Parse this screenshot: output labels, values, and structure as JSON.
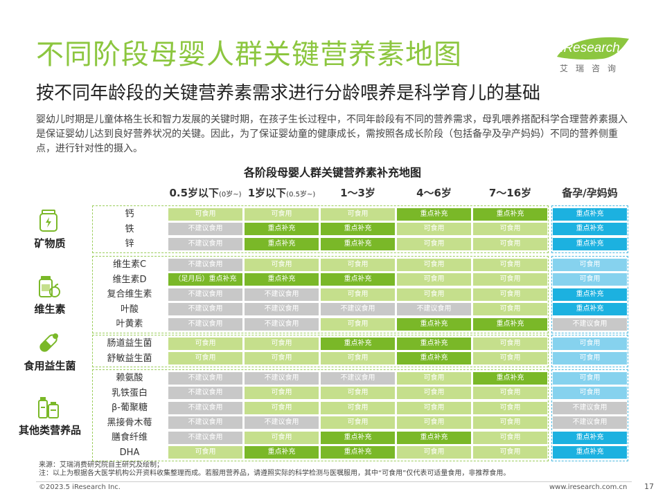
{
  "title": "不同阶段母婴人群关键营养素地图",
  "subtitle": "按不同年龄段的关键营养素需求进行分龄喂养是科学育儿的基础",
  "intro": "婴幼儿时期是儿童体格生长和智力发展的关键时期，在孩子生长过程中，不同年龄段有不同的营养需求，母乳喂养搭配科学合理营养素摄入是保证婴幼儿达到良好营养状况的关键。因此，为了保证婴幼童的健康成长，需按照各成长阶段（包括备孕及孕产妈妈）不同的营养侧重点，进行针对性的摄入。",
  "logo": {
    "brand": "iResearch",
    "cn": "艾瑞咨询",
    "color": "#8cc63f"
  },
  "table_title": "各阶段母婴人群关键营养素补充地图",
  "columns": [
    {
      "main": "0.5岁以下",
      "note": "(0岁~)"
    },
    {
      "main": "1岁以下",
      "note": "(0.5岁~)"
    },
    {
      "main": "1～3岁",
      "note": ""
    },
    {
      "main": "4～6岁",
      "note": ""
    },
    {
      "main": "7～16岁",
      "note": ""
    },
    {
      "main": "备孕/孕妈妈",
      "note": ""
    }
  ],
  "groups": [
    {
      "name": "矿物质",
      "icon": "jar-icon",
      "rows": [
        {
          "name": "钙",
          "cells": [
            "可食用",
            "可食用",
            "可食用",
            "重点补充",
            "重点补充",
            "重点补充"
          ]
        },
        {
          "name": "铁",
          "cells": [
            "不建议食用",
            "重点补充",
            "重点补充",
            "可食用",
            "可食用",
            "重点补充"
          ]
        },
        {
          "name": "锌",
          "cells": [
            "不建议食用",
            "重点补充",
            "重点补充",
            "可食用",
            "可食用",
            "重点补充"
          ]
        }
      ]
    },
    {
      "name": "维生素",
      "icon": "vitamin-bottle-icon",
      "rows": [
        {
          "name": "维生素C",
          "cells": [
            "不建议食用",
            "可食用",
            "可食用",
            "可食用",
            "可食用",
            "可食用"
          ]
        },
        {
          "name": "维生素D",
          "cells": [
            "（足月后）重点补充",
            "重点补充",
            "重点补充",
            "可食用",
            "可食用",
            "可食用"
          ]
        },
        {
          "name": "复合维生素",
          "cells": [
            "不建议食用",
            "不建议食用",
            "可食用",
            "可食用",
            "可食用",
            "重点补充"
          ]
        },
        {
          "name": "叶酸",
          "cells": [
            "不建议食用",
            "不建议食用",
            "不建议食用",
            "不建议食用",
            "可食用",
            "重点补充"
          ]
        },
        {
          "name": "叶黄素",
          "cells": [
            "不建议食用",
            "不建议食用",
            "可食用",
            "重点补充",
            "重点补充",
            "不建议食用"
          ]
        }
      ]
    },
    {
      "name": "食用益生菌",
      "icon": "capsule-icon",
      "rows": [
        {
          "name": "肠道益生菌",
          "cells": [
            "可食用",
            "可食用",
            "重点补充",
            "重点补充",
            "可食用",
            "可食用"
          ]
        },
        {
          "name": "舒敏益生菌",
          "cells": [
            "可食用",
            "可食用",
            "可食用",
            "重点补充",
            "可食用",
            "可食用"
          ]
        }
      ]
    },
    {
      "name": "其他类营养品",
      "icon": "supplement-bottles-icon",
      "rows": [
        {
          "name": "赖氨酸",
          "cells": [
            "不建议食用",
            "不建议食用",
            "不建议食用",
            "可食用",
            "重点补充",
            "可食用"
          ]
        },
        {
          "name": "乳铁蛋白",
          "cells": [
            "不建议食用",
            "可食用",
            "可食用",
            "可食用",
            "可食用",
            "可食用"
          ]
        },
        {
          "name": "β-葡聚糖",
          "cells": [
            "不建议食用",
            "可食用",
            "可食用",
            "可食用",
            "可食用",
            "不建议食用"
          ]
        },
        {
          "name": "黑接骨木莓",
          "cells": [
            "不建议食用",
            "不建议食用",
            "可食用",
            "可食用",
            "可食用",
            "不建议食用"
          ]
        },
        {
          "name": "膳食纤维",
          "cells": [
            "不建议食用",
            "可食用",
            "重点补充",
            "重点补充",
            "可食用",
            "重点补充"
          ]
        },
        {
          "name": "DHA",
          "cells": [
            "可食用",
            "重点补充",
            "重点补充",
            "可食用",
            "可食用",
            "重点补充"
          ]
        }
      ]
    }
  ],
  "status_colors": {
    "可食用": {
      "green": "#c5df8c",
      "blue": "#86d2ee"
    },
    "重点补充": {
      "green": "#7ab828",
      "blue": "#1cb1e0"
    },
    "不建议食用": {
      "green": "#c8c8c8",
      "blue": "#c8c8c8"
    }
  },
  "source": "来源：艾瑞消费研究院自主研究及绘制；",
  "note": "注：以上为根据各大医学机构公开资料收集整理而成。若服用营养品，请遵照实际的科学检测与医嘱服用，其中“可食用”仅代表可适量食用，非推荐食用。",
  "copyright": "©2023.5 iResearch Inc.",
  "website": "www.iresearch.com.cn",
  "page_number": "17"
}
